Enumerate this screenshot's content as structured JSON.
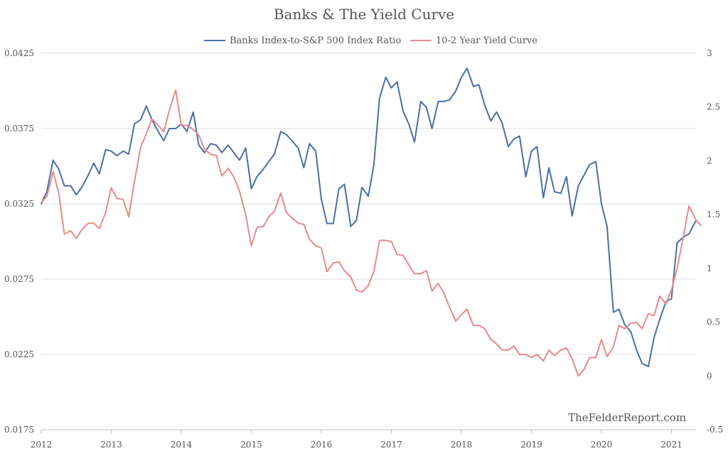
{
  "chart_data": {
    "type": "line",
    "title": "Banks & The Yield Curve",
    "watermark": "TheFelderReport.com",
    "legend_position": "top-center",
    "grid": true,
    "x_axis": {
      "ticks": [
        "2012",
        "2013",
        "2014",
        "2015",
        "2016",
        "2017",
        "2018",
        "2019",
        "2020",
        "2021"
      ],
      "range": [
        2012.0,
        2021.35
      ]
    },
    "y_left": {
      "ticks": [
        "0.0175",
        "0.0225",
        "0.0275",
        "0.0325",
        "0.0375",
        "0.0425"
      ],
      "range": [
        0.0175,
        0.0425
      ]
    },
    "y_right": {
      "ticks": [
        "-0.5",
        "0",
        "0.5",
        "1",
        "1.5",
        "2",
        "2.5",
        "3"
      ],
      "range": [
        -0.5,
        3.0
      ]
    },
    "series": [
      {
        "name": "Banks Index-to-S&P 500 Index Ratio",
        "axis": "left",
        "color": "#4a6fa5",
        "points": [
          [
            2012.0,
            0.0325
          ],
          [
            2012.08,
            0.0333
          ],
          [
            2012.17,
            0.0354
          ],
          [
            2012.25,
            0.0348
          ],
          [
            2012.33,
            0.0337
          ],
          [
            2012.42,
            0.0337
          ],
          [
            2012.5,
            0.0331
          ],
          [
            2012.58,
            0.0336
          ],
          [
            2012.67,
            0.0344
          ],
          [
            2012.75,
            0.0352
          ],
          [
            2012.83,
            0.0345
          ],
          [
            2012.92,
            0.0361
          ],
          [
            2013.0,
            0.036
          ],
          [
            2013.08,
            0.0357
          ],
          [
            2013.17,
            0.036
          ],
          [
            2013.25,
            0.0358
          ],
          [
            2013.33,
            0.0378
          ],
          [
            2013.42,
            0.0381
          ],
          [
            2013.5,
            0.039
          ],
          [
            2013.58,
            0.0381
          ],
          [
            2013.67,
            0.0373
          ],
          [
            2013.75,
            0.0367
          ],
          [
            2013.83,
            0.0375
          ],
          [
            2013.92,
            0.0375
          ],
          [
            2014.0,
            0.0378
          ],
          [
            2014.08,
            0.0373
          ],
          [
            2014.17,
            0.0386
          ],
          [
            2014.25,
            0.0364
          ],
          [
            2014.33,
            0.0359
          ],
          [
            2014.42,
            0.0365
          ],
          [
            2014.5,
            0.0364
          ],
          [
            2014.58,
            0.0359
          ],
          [
            2014.67,
            0.0364
          ],
          [
            2014.75,
            0.0359
          ],
          [
            2014.83,
            0.0354
          ],
          [
            2014.92,
            0.0362
          ],
          [
            2015.0,
            0.0335
          ],
          [
            2015.08,
            0.0343
          ],
          [
            2015.17,
            0.0348
          ],
          [
            2015.25,
            0.0353
          ],
          [
            2015.33,
            0.0358
          ],
          [
            2015.42,
            0.0373
          ],
          [
            2015.5,
            0.0371
          ],
          [
            2015.58,
            0.0367
          ],
          [
            2015.67,
            0.0362
          ],
          [
            2015.75,
            0.0349
          ],
          [
            2015.83,
            0.0365
          ],
          [
            2015.92,
            0.036
          ],
          [
            2016.0,
            0.0328
          ],
          [
            2016.08,
            0.0312
          ],
          [
            2016.17,
            0.0312
          ],
          [
            2016.25,
            0.0335
          ],
          [
            2016.33,
            0.0338
          ],
          [
            2016.42,
            0.031
          ],
          [
            2016.5,
            0.0314
          ],
          [
            2016.58,
            0.0336
          ],
          [
            2016.67,
            0.033
          ],
          [
            2016.75,
            0.0351
          ],
          [
            2016.83,
            0.0395
          ],
          [
            2016.92,
            0.0409
          ],
          [
            2017.0,
            0.0402
          ],
          [
            2017.08,
            0.0406
          ],
          [
            2017.17,
            0.0386
          ],
          [
            2017.25,
            0.0378
          ],
          [
            2017.33,
            0.0366
          ],
          [
            2017.42,
            0.0393
          ],
          [
            2017.5,
            0.0389
          ],
          [
            2017.58,
            0.0375
          ],
          [
            2017.67,
            0.0393
          ],
          [
            2017.75,
            0.0393
          ],
          [
            2017.83,
            0.0394
          ],
          [
            2017.92,
            0.04
          ],
          [
            2018.0,
            0.0409
          ],
          [
            2018.08,
            0.0415
          ],
          [
            2018.17,
            0.0403
          ],
          [
            2018.25,
            0.0404
          ],
          [
            2018.33,
            0.0391
          ],
          [
            2018.42,
            0.038
          ],
          [
            2018.5,
            0.0386
          ],
          [
            2018.58,
            0.0379
          ],
          [
            2018.67,
            0.0363
          ],
          [
            2018.75,
            0.0368
          ],
          [
            2018.83,
            0.037
          ],
          [
            2018.92,
            0.0343
          ],
          [
            2019.0,
            0.036
          ],
          [
            2019.08,
            0.0363
          ],
          [
            2019.17,
            0.0329
          ],
          [
            2019.25,
            0.0349
          ],
          [
            2019.33,
            0.0333
          ],
          [
            2019.42,
            0.0332
          ],
          [
            2019.5,
            0.0343
          ],
          [
            2019.58,
            0.0317
          ],
          [
            2019.67,
            0.0337
          ],
          [
            2019.75,
            0.0344
          ],
          [
            2019.83,
            0.0351
          ],
          [
            2019.92,
            0.0353
          ],
          [
            2020.0,
            0.0325
          ],
          [
            2020.08,
            0.031
          ],
          [
            2020.17,
            0.0253
          ],
          [
            2020.25,
            0.0255
          ],
          [
            2020.33,
            0.0245
          ],
          [
            2020.42,
            0.024
          ],
          [
            2020.5,
            0.0228
          ],
          [
            2020.58,
            0.0219
          ],
          [
            2020.67,
            0.0217
          ],
          [
            2020.75,
            0.0236
          ],
          [
            2020.83,
            0.0248
          ],
          [
            2020.92,
            0.026
          ],
          [
            2021.0,
            0.0262
          ],
          [
            2021.08,
            0.0299
          ],
          [
            2021.17,
            0.0303
          ],
          [
            2021.25,
            0.0305
          ],
          [
            2021.35,
            0.0314
          ]
        ]
      },
      {
        "name": "10-2 Year Yield Curve",
        "axis": "right",
        "color": "#e88a8a",
        "points": [
          [
            2012.0,
            1.61
          ],
          [
            2012.08,
            1.67
          ],
          [
            2012.17,
            1.9
          ],
          [
            2012.25,
            1.7
          ],
          [
            2012.33,
            1.32
          ],
          [
            2012.42,
            1.35
          ],
          [
            2012.5,
            1.28
          ],
          [
            2012.58,
            1.36
          ],
          [
            2012.67,
            1.42
          ],
          [
            2012.75,
            1.42
          ],
          [
            2012.83,
            1.37
          ],
          [
            2012.92,
            1.52
          ],
          [
            2013.0,
            1.75
          ],
          [
            2013.08,
            1.65
          ],
          [
            2013.17,
            1.64
          ],
          [
            2013.25,
            1.48
          ],
          [
            2013.33,
            1.8
          ],
          [
            2013.42,
            2.13
          ],
          [
            2013.5,
            2.25
          ],
          [
            2013.58,
            2.39
          ],
          [
            2013.67,
            2.33
          ],
          [
            2013.75,
            2.27
          ],
          [
            2013.83,
            2.47
          ],
          [
            2013.92,
            2.66
          ],
          [
            2014.0,
            2.33
          ],
          [
            2014.08,
            2.33
          ],
          [
            2014.17,
            2.29
          ],
          [
            2014.25,
            2.24
          ],
          [
            2014.33,
            2.11
          ],
          [
            2014.42,
            2.06
          ],
          [
            2014.5,
            2.05
          ],
          [
            2014.58,
            1.86
          ],
          [
            2014.67,
            1.93
          ],
          [
            2014.75,
            1.85
          ],
          [
            2014.83,
            1.72
          ],
          [
            2014.92,
            1.5
          ],
          [
            2015.0,
            1.21
          ],
          [
            2015.08,
            1.38
          ],
          [
            2015.17,
            1.39
          ],
          [
            2015.25,
            1.48
          ],
          [
            2015.33,
            1.53
          ],
          [
            2015.42,
            1.7
          ],
          [
            2015.5,
            1.52
          ],
          [
            2015.58,
            1.47
          ],
          [
            2015.67,
            1.42
          ],
          [
            2015.75,
            1.41
          ],
          [
            2015.83,
            1.27
          ],
          [
            2015.92,
            1.21
          ],
          [
            2016.0,
            1.19
          ],
          [
            2016.08,
            0.97
          ],
          [
            2016.17,
            1.05
          ],
          [
            2016.25,
            1.06
          ],
          [
            2016.33,
            0.98
          ],
          [
            2016.42,
            0.92
          ],
          [
            2016.5,
            0.8
          ],
          [
            2016.58,
            0.78
          ],
          [
            2016.67,
            0.84
          ],
          [
            2016.75,
            0.97
          ],
          [
            2016.83,
            1.26
          ],
          [
            2016.92,
            1.26
          ],
          [
            2017.0,
            1.25
          ],
          [
            2017.08,
            1.13
          ],
          [
            2017.17,
            1.12
          ],
          [
            2017.25,
            1.03
          ],
          [
            2017.33,
            0.95
          ],
          [
            2017.42,
            0.95
          ],
          [
            2017.5,
            0.98
          ],
          [
            2017.58,
            0.79
          ],
          [
            2017.67,
            0.86
          ],
          [
            2017.75,
            0.77
          ],
          [
            2017.83,
            0.64
          ],
          [
            2017.92,
            0.51
          ],
          [
            2018.0,
            0.57
          ],
          [
            2018.08,
            0.62
          ],
          [
            2018.17,
            0.47
          ],
          [
            2018.25,
            0.47
          ],
          [
            2018.33,
            0.44
          ],
          [
            2018.42,
            0.34
          ],
          [
            2018.5,
            0.3
          ],
          [
            2018.58,
            0.24
          ],
          [
            2018.67,
            0.24
          ],
          [
            2018.75,
            0.28
          ],
          [
            2018.83,
            0.2
          ],
          [
            2018.92,
            0.2
          ],
          [
            2019.0,
            0.17
          ],
          [
            2019.08,
            0.2
          ],
          [
            2019.17,
            0.14
          ],
          [
            2019.25,
            0.24
          ],
          [
            2019.33,
            0.19
          ],
          [
            2019.42,
            0.24
          ],
          [
            2019.5,
            0.26
          ],
          [
            2019.58,
            0.16
          ],
          [
            2019.67,
            0.0
          ],
          [
            2019.75,
            0.06
          ],
          [
            2019.83,
            0.17
          ],
          [
            2019.92,
            0.17
          ],
          [
            2020.0,
            0.34
          ],
          [
            2020.08,
            0.18
          ],
          [
            2020.17,
            0.27
          ],
          [
            2020.25,
            0.47
          ],
          [
            2020.33,
            0.44
          ],
          [
            2020.42,
            0.49
          ],
          [
            2020.5,
            0.5
          ],
          [
            2020.58,
            0.44
          ],
          [
            2020.67,
            0.58
          ],
          [
            2020.75,
            0.56
          ],
          [
            2020.83,
            0.74
          ],
          [
            2020.92,
            0.67
          ],
          [
            2021.0,
            0.8
          ],
          [
            2021.08,
            1.0
          ],
          [
            2021.17,
            1.3
          ],
          [
            2021.25,
            1.58
          ],
          [
            2021.35,
            1.45
          ],
          [
            2021.42,
            1.4
          ]
        ]
      }
    ]
  }
}
